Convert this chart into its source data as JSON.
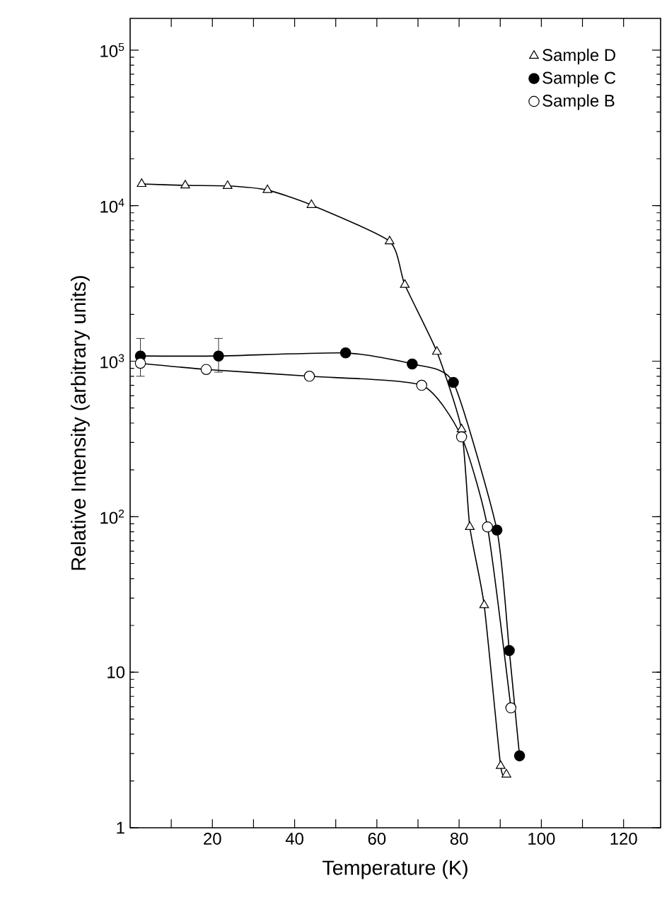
{
  "chart_data": {
    "type": "line",
    "xlabel": "Temperature (K)",
    "ylabel": "Relative Intensity (arbitrary units)",
    "xlim": [
      0,
      129
    ],
    "ylim": [
      1,
      160000
    ],
    "log": "y",
    "xticks": [
      {
        "value": 10,
        "label": null
      },
      20,
      {
        "value": 30,
        "label": null
      },
      40,
      {
        "value": 50,
        "label": null
      },
      60,
      {
        "value": 70,
        "label": null
      },
      80,
      {
        "value": 90,
        "label": null
      },
      100,
      {
        "value": 110,
        "label": null
      },
      120
    ],
    "yticks": [
      1,
      10,
      {
        "value": 100,
        "label": "10$^{2}$"
      },
      {
        "value": 1000,
        "label": "10$^{3}$"
      },
      {
        "value": 10000,
        "label": "10$^{4}$"
      },
      {
        "value": 100000,
        "label": "10$^{5}$"
      }
    ],
    "legend": "top right",
    "line_style": "solid",
    "grid": false,
    "series": [
      {
        "name": "Sample D",
        "color": "#ffffff",
        "marker": "triangle",
        "x": [
          2.8,
          13.4,
          23.7,
          33.4,
          44.1,
          63.1,
          66.8,
          74.6,
          80.6,
          82.6,
          86.1,
          90.1,
          91.5
        ],
        "values": [
          13800,
          13500,
          13400,
          12600,
          10100,
          5900,
          3100,
          1150,
          365,
          86,
          27,
          2.5,
          2.2
        ]
      },
      {
        "name": "Sample C",
        "color": "#000000",
        "marker": "circle",
        "x": [
          2.5,
          21.5,
          52.4,
          68.6,
          78.6,
          89.2,
          92.2,
          94.7
        ],
        "values": [
          1080,
          1080,
          1130,
          960,
          730,
          82,
          13.8,
          2.9
        ],
        "errors": [
          [
            800,
            1400
          ],
          [
            850,
            1400
          ],
          null,
          null,
          null,
          null,
          null,
          null
        ]
      },
      {
        "name": "Sample B",
        "color": "#ffffff",
        "marker": "circle",
        "x": [
          2.5,
          18.5,
          43.6,
          70.9,
          80.6,
          86.9,
          92.6
        ],
        "values": [
          970,
          885,
          800,
          700,
          326,
          86,
          5.9
        ]
      }
    ]
  }
}
